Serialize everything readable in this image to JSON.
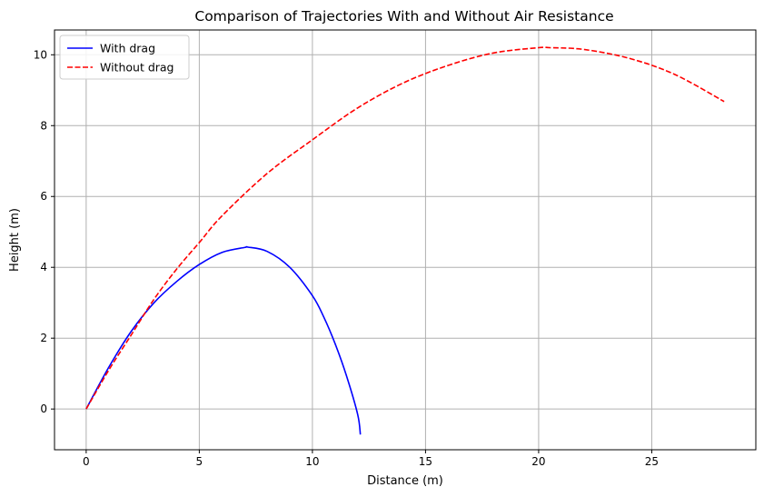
{
  "chart_data": {
    "type": "line",
    "title": "Comparison of Trajectories With and Without Air Resistance",
    "xlabel": "Distance (m)",
    "ylabel": "Height (m)",
    "xlim": [
      -1.4,
      29.6
    ],
    "ylim": [
      -1.15,
      10.7
    ],
    "xticks": [
      0,
      5,
      10,
      15,
      20,
      25
    ],
    "yticks": [
      0,
      2,
      4,
      6,
      8,
      10
    ],
    "grid": true,
    "legend_position": "upper-left",
    "series": [
      {
        "name": "With drag",
        "color": "#0000ff",
        "dash": "solid",
        "x": [
          0,
          1,
          2,
          3,
          4,
          5,
          6,
          7,
          7.15,
          8,
          9,
          10,
          10.5,
          11,
          11.5,
          12,
          12.12
        ],
        "y": [
          0,
          1.18,
          2.2,
          3.0,
          3.6,
          4.08,
          4.42,
          4.56,
          4.57,
          4.45,
          4.0,
          3.2,
          2.6,
          1.85,
          0.95,
          -0.15,
          -0.72
        ]
      },
      {
        "name": "Without drag",
        "color": "#ff0000",
        "dash": "dashed",
        "x": [
          0,
          1,
          2,
          3,
          4,
          5,
          6,
          8,
          10,
          12,
          14,
          16,
          18,
          20,
          20.5,
          22,
          24,
          26,
          28.2
        ],
        "y": [
          0,
          1.1,
          2.1,
          3.1,
          3.95,
          4.7,
          5.45,
          6.65,
          7.6,
          8.5,
          9.2,
          9.7,
          10.05,
          10.2,
          10.2,
          10.15,
          9.9,
          9.45,
          8.68
        ]
      }
    ]
  }
}
